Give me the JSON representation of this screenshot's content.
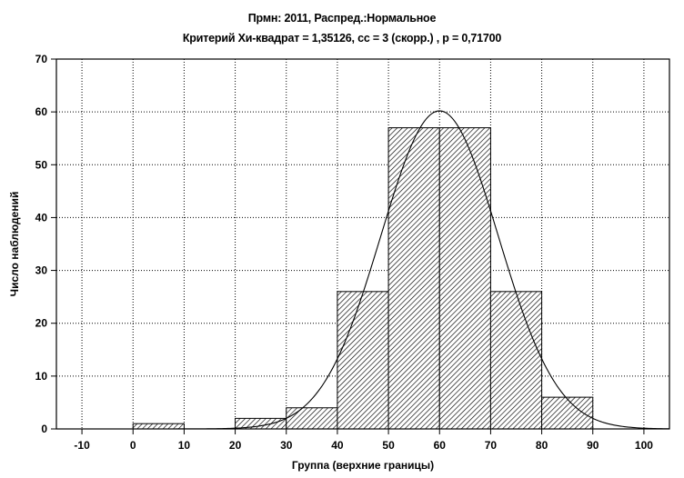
{
  "chart_data": {
    "type": "bar",
    "title": "Прмн: 2011, Распред.:Нормальное",
    "subtitle": "Критерий Хи-квадрат = 1,35126, сс = 3 (скорр.) , p = 0,71700",
    "xlabel": "Группа (верхние границы)",
    "ylabel": "Число наблюдений",
    "xlim": [
      -15,
      105
    ],
    "ylim": [
      0,
      70
    ],
    "x_ticks": [
      -10,
      0,
      10,
      20,
      30,
      40,
      50,
      60,
      70,
      80,
      90,
      100
    ],
    "y_ticks": [
      0,
      10,
      20,
      30,
      40,
      50,
      60,
      70
    ],
    "grid": true,
    "bins": [
      {
        "from": 0,
        "to": 10,
        "value": 1
      },
      {
        "from": 20,
        "to": 30,
        "value": 2
      },
      {
        "from": 30,
        "to": 40,
        "value": 4
      },
      {
        "from": 40,
        "to": 50,
        "value": 26
      },
      {
        "from": 50,
        "to": 60,
        "value": 57
      },
      {
        "from": 60,
        "to": 70,
        "value": 57
      },
      {
        "from": 70,
        "to": 80,
        "value": 26
      },
      {
        "from": 80,
        "to": 90,
        "value": 6
      }
    ],
    "fitted_curve": {
      "distribution": "normal",
      "mean": 60,
      "sd": 11.5,
      "peak": 60.2
    }
  }
}
